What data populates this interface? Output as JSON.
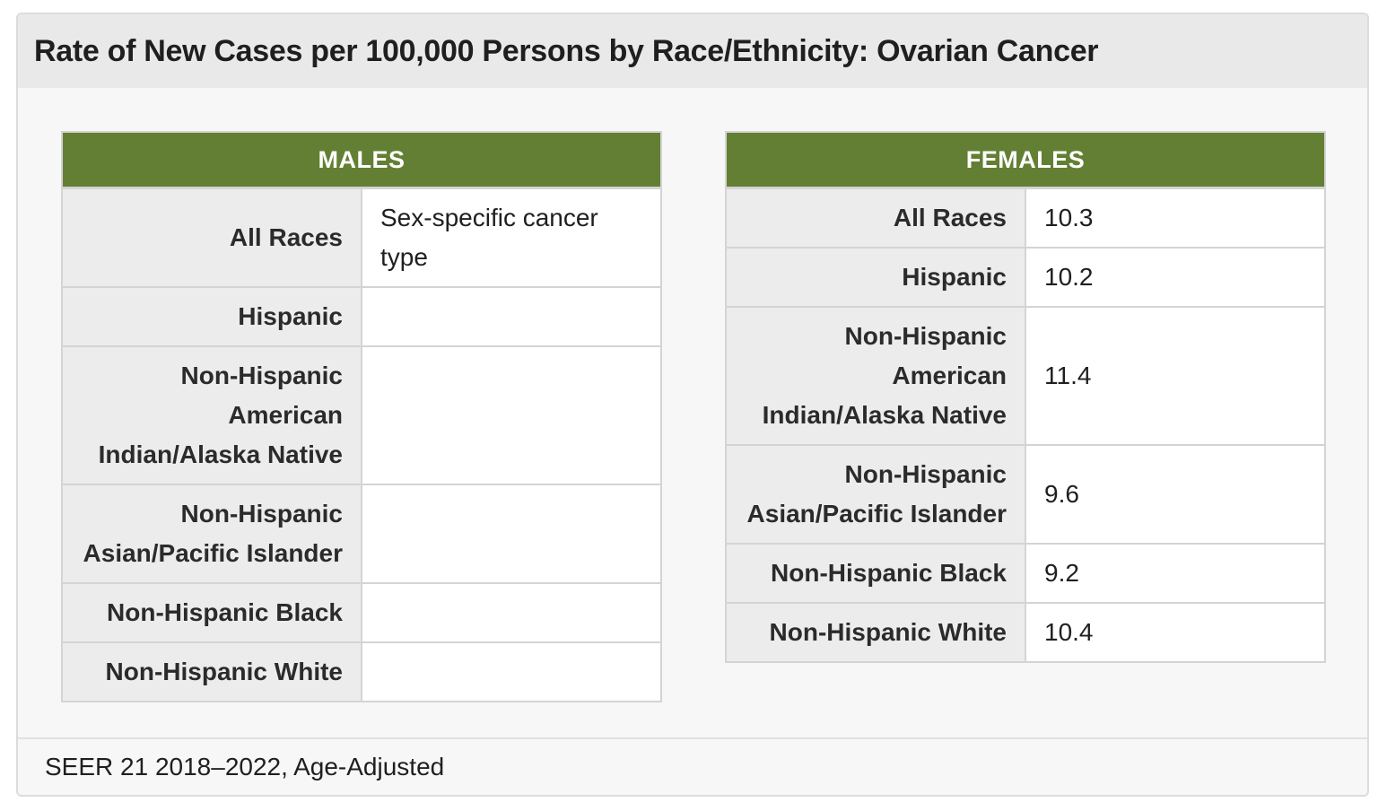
{
  "card": {
    "title": "Rate of New Cases per 100,000 Persons by Race/Ethnicity: Ovarian Cancer",
    "footer": "SEER 21 2018–2022, Age-Adjusted"
  },
  "males": {
    "heading": "MALES",
    "rows": [
      {
        "race": "All Races",
        "value": "Sex-specific cancer type"
      },
      {
        "race": "Hispanic",
        "value": ""
      },
      {
        "race": "Non-Hispanic American Indian/Alaska Native",
        "value": ""
      },
      {
        "race": "Non-Hispanic Asian/Pacific Islander",
        "value": ""
      },
      {
        "race": "Non-Hispanic Black",
        "value": ""
      },
      {
        "race": "Non-Hispanic White",
        "value": ""
      }
    ]
  },
  "females": {
    "heading": "FEMALES",
    "rows": [
      {
        "race": "All Races",
        "value": "10.3"
      },
      {
        "race": "Hispanic",
        "value": "10.2"
      },
      {
        "race": "Non-Hispanic American Indian/Alaska Native",
        "value": "11.4"
      },
      {
        "race": "Non-Hispanic Asian/Pacific Islander",
        "value": "9.6"
      },
      {
        "race": "Non-Hispanic Black",
        "value": "9.2"
      },
      {
        "race": "Non-Hispanic White",
        "value": "10.4"
      }
    ]
  },
  "colors": {
    "header_green": "#637f33",
    "row_label_bg": "#ececec",
    "card_bg": "#f6f7f6"
  }
}
